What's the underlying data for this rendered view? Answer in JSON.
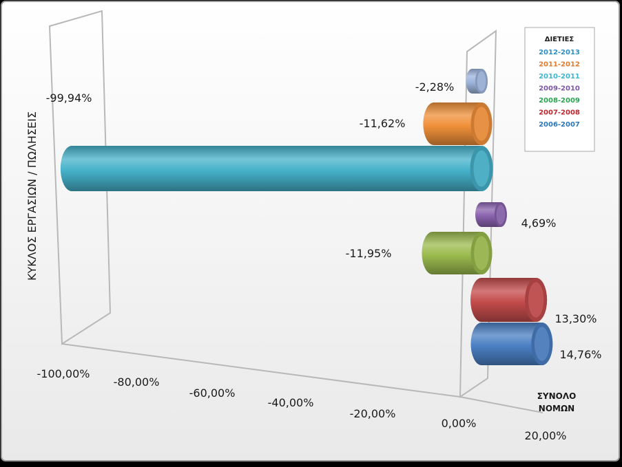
{
  "chart_data": {
    "type": "bar",
    "orientation": "horizontal",
    "style": "3d-cylinder",
    "ylabel": "ΚΥΚΛΟΣ ΕΡΓΑΣΙΩΝ / ΠΩΛΗΣΕΙΣ",
    "category_label": "ΣΥΝΟΛΟ ΝΟΜΩΝ",
    "category_label_lines": [
      "ΣΥΝΟΛΟ",
      "ΝΟΜΩΝ"
    ],
    "x_ticks": [
      "-100,00%",
      "-80,00%",
      "-60,00%",
      "-40,00%",
      "-20,00%",
      "0,00%",
      "20,00%"
    ],
    "xlim": [
      -100,
      20
    ],
    "legend": {
      "title": "ΔΙΕΤΙΕΣ",
      "position": "top-right"
    },
    "series": [
      {
        "name": "2012-2013",
        "value": -2.28,
        "label": "-2,28%",
        "color": "#9db4dc"
      },
      {
        "name": "2011-2012",
        "value": -11.62,
        "label": "-11,62%",
        "color": "#f0903a"
      },
      {
        "name": "2010-2011",
        "value": -99.94,
        "label": "-99,94%",
        "color": "#45b1c9"
      },
      {
        "name": "2009-2010",
        "value": 4.69,
        "label": "4,69%",
        "color": "#8a63ae"
      },
      {
        "name": "2008-2009",
        "value": -11.95,
        "label": "-11,95%",
        "color": "#9bbb4e"
      },
      {
        "name": "2007-2008",
        "value": 13.3,
        "label": "13,30%",
        "color": "#c44b4b"
      },
      {
        "name": "2006-2007",
        "value": 14.76,
        "label": "14,76%",
        "color": "#4a7fc3"
      }
    ],
    "legend_text_colors": [
      "#2e8fc4",
      "#e07b2c",
      "#3cb5d0",
      "#7c55a8",
      "#2aa550",
      "#c0262d",
      "#2a76b8"
    ]
  }
}
